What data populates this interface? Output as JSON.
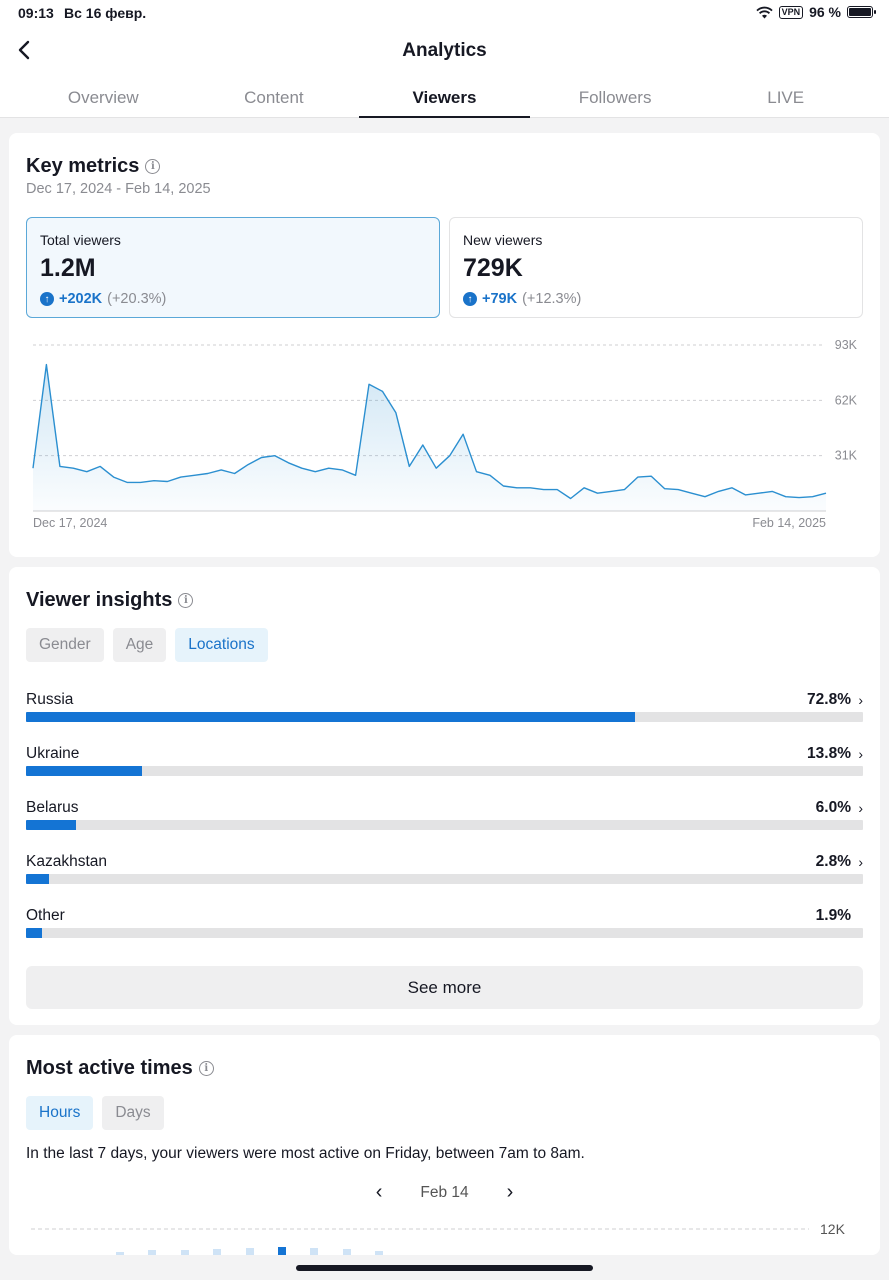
{
  "status": {
    "time": "09:13",
    "date": "Вс 16 февр.",
    "vpn": "VPN",
    "battery": "96 %"
  },
  "header": {
    "title": "Analytics",
    "tabs": [
      {
        "label": "Overview"
      },
      {
        "label": "Content"
      },
      {
        "label": "Viewers",
        "active": true
      },
      {
        "label": "Followers"
      },
      {
        "label": "LIVE"
      }
    ]
  },
  "key_metrics": {
    "title": "Key metrics",
    "range": "Dec 17, 2024 - Feb 14, 2025",
    "cards": [
      {
        "label": "Total viewers",
        "value": "1.2M",
        "delta": "+202K",
        "pct": "(+20.3%)"
      },
      {
        "label": "New viewers",
        "value": "729K",
        "delta": "+79K",
        "pct": "(+12.3%)"
      }
    ]
  },
  "chart_data": {
    "type": "area",
    "series": [
      {
        "values": [
          24,
          82,
          25,
          24,
          22,
          25,
          19,
          16,
          16,
          17,
          16.5,
          19,
          20,
          21,
          23,
          21,
          26,
          30,
          31,
          27,
          24,
          22,
          24,
          23,
          20,
          71,
          67,
          55,
          25,
          37,
          24,
          31,
          43,
          22,
          20,
          14,
          13,
          13,
          12,
          12,
          7,
          13,
          10,
          11,
          12,
          19,
          19.5,
          12.5,
          12,
          10,
          8,
          11,
          13,
          9,
          10,
          11,
          8,
          7.5,
          8,
          10
        ]
      }
    ],
    "x_ticks": [
      "Dec 17, 2024",
      "Feb 14, 2025"
    ],
    "y_ticks": [
      "93K",
      "62K",
      "31K"
    ],
    "ylim": [
      0,
      93
    ],
    "grid": true,
    "color": "#2b8fd0"
  },
  "viewer_insights": {
    "title": "Viewer insights",
    "chips": [
      {
        "label": "Gender"
      },
      {
        "label": "Age"
      },
      {
        "label": "Locations",
        "active": true
      }
    ],
    "locations": [
      {
        "name": "Russia",
        "pct": "72.8%",
        "value": 72.8,
        "chevron": true
      },
      {
        "name": "Ukraine",
        "pct": "13.8%",
        "value": 13.8,
        "chevron": true
      },
      {
        "name": "Belarus",
        "pct": "6.0%",
        "value": 6.0,
        "chevron": true
      },
      {
        "name": "Kazakhstan",
        "pct": "2.8%",
        "value": 2.8,
        "chevron": true
      },
      {
        "name": "Other",
        "pct": "1.9%",
        "value": 1.9,
        "chevron": false
      }
    ],
    "see_more": "See more"
  },
  "most_active": {
    "title": "Most active times",
    "chips": [
      {
        "label": "Hours",
        "active": true
      },
      {
        "label": "Days"
      }
    ],
    "description": "In the last 7 days, your viewers were most active on Friday, between 7am to 8am.",
    "date": "Feb 14",
    "y_tick": "12K"
  },
  "colors": {
    "accent": "#1474d4",
    "text": "#161823",
    "muted": "#8a8b91"
  }
}
